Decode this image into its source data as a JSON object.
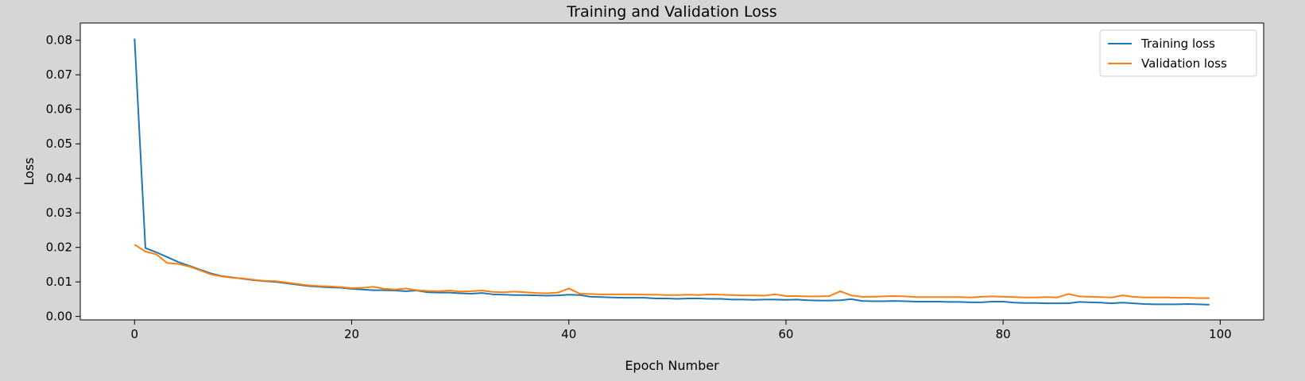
{
  "chart_data": {
    "type": "line",
    "title": "Training and Validation Loss",
    "xlabel": "Epoch Number",
    "ylabel": "Loss",
    "xlim": [
      -5,
      104
    ],
    "ylim": [
      -0.001,
      0.085
    ],
    "xticks": [
      0,
      20,
      40,
      60,
      80,
      100
    ],
    "xtick_labels": [
      "0",
      "20",
      "40",
      "60",
      "80",
      "100"
    ],
    "yticks": [
      0.0,
      0.01,
      0.02,
      0.03,
      0.04,
      0.05,
      0.06,
      0.07,
      0.08
    ],
    "ytick_labels": [
      "0.00",
      "0.01",
      "0.02",
      "0.03",
      "0.04",
      "0.05",
      "0.06",
      "0.07",
      "0.08"
    ],
    "grid": false,
    "legend_position": "top-right",
    "x": [
      0,
      1,
      2,
      3,
      4,
      5,
      6,
      7,
      8,
      9,
      10,
      11,
      12,
      13,
      14,
      15,
      16,
      17,
      18,
      19,
      20,
      21,
      22,
      23,
      24,
      25,
      26,
      27,
      28,
      29,
      30,
      31,
      32,
      33,
      34,
      35,
      36,
      37,
      38,
      39,
      40,
      41,
      42,
      43,
      44,
      45,
      46,
      47,
      48,
      49,
      50,
      51,
      52,
      53,
      54,
      55,
      56,
      57,
      58,
      59,
      60,
      61,
      62,
      63,
      64,
      65,
      66,
      67,
      68,
      69,
      70,
      71,
      72,
      73,
      74,
      75,
      76,
      77,
      78,
      79,
      80,
      81,
      82,
      83,
      84,
      85,
      86,
      87,
      88,
      89,
      90,
      91,
      92,
      93,
      94,
      95,
      96,
      97,
      98,
      99
    ],
    "series": [
      {
        "name": "Training loss",
        "color": "#1f77b4",
        "values": [
          0.0805,
          0.0198,
          0.0186,
          0.0172,
          0.0158,
          0.0147,
          0.0136,
          0.0125,
          0.0117,
          0.0113,
          0.0109,
          0.0105,
          0.0102,
          0.01,
          0.0096,
          0.0092,
          0.0088,
          0.0086,
          0.0084,
          0.0083,
          0.008,
          0.0078,
          0.0076,
          0.0076,
          0.0075,
          0.0073,
          0.0075,
          0.007,
          0.0069,
          0.0069,
          0.0067,
          0.0066,
          0.0068,
          0.0064,
          0.0063,
          0.0062,
          0.0062,
          0.0061,
          0.006,
          0.0061,
          0.0063,
          0.0062,
          0.0057,
          0.0056,
          0.0055,
          0.0054,
          0.0054,
          0.0054,
          0.0052,
          0.0052,
          0.0051,
          0.0052,
          0.0052,
          0.0051,
          0.0051,
          0.0049,
          0.0049,
          0.0048,
          0.0049,
          0.0049,
          0.0048,
          0.0049,
          0.0047,
          0.0046,
          0.0046,
          0.0047,
          0.005,
          0.0045,
          0.0044,
          0.0044,
          0.0045,
          0.0044,
          0.0043,
          0.0043,
          0.0043,
          0.0042,
          0.0042,
          0.0041,
          0.0041,
          0.0043,
          0.0043,
          0.004,
          0.0039,
          0.0039,
          0.0038,
          0.0038,
          0.0038,
          0.0042,
          0.0041,
          0.004,
          0.0038,
          0.004,
          0.0038,
          0.0036,
          0.0035,
          0.0035,
          0.0035,
          0.0036,
          0.0035,
          0.0034
        ]
      },
      {
        "name": "Validation loss",
        "color": "#ff7f0e",
        "values": [
          0.0208,
          0.0188,
          0.018,
          0.0155,
          0.0152,
          0.0145,
          0.0134,
          0.0122,
          0.0116,
          0.0112,
          0.011,
          0.0106,
          0.0103,
          0.0102,
          0.0098,
          0.0094,
          0.009,
          0.0088,
          0.0087,
          0.0085,
          0.0082,
          0.0083,
          0.0086,
          0.008,
          0.0078,
          0.0081,
          0.0076,
          0.0074,
          0.0073,
          0.0075,
          0.0072,
          0.0073,
          0.0075,
          0.0071,
          0.007,
          0.0072,
          0.007,
          0.0068,
          0.0067,
          0.0069,
          0.0081,
          0.0066,
          0.0065,
          0.0064,
          0.0064,
          0.0064,
          0.0064,
          0.0063,
          0.0063,
          0.0062,
          0.0062,
          0.0063,
          0.0062,
          0.0064,
          0.0063,
          0.0062,
          0.0061,
          0.0061,
          0.006,
          0.0064,
          0.0059,
          0.0059,
          0.0058,
          0.0058,
          0.0059,
          0.0073,
          0.0061,
          0.0057,
          0.0057,
          0.0058,
          0.0059,
          0.0058,
          0.0056,
          0.0056,
          0.0056,
          0.0056,
          0.0056,
          0.0055,
          0.0057,
          0.0058,
          0.0057,
          0.0056,
          0.0055,
          0.0055,
          0.0056,
          0.0055,
          0.0065,
          0.0058,
          0.0057,
          0.0056,
          0.0055,
          0.0061,
          0.0057,
          0.0055,
          0.0055,
          0.0055,
          0.0054,
          0.0054,
          0.0053,
          0.0053
        ]
      }
    ]
  }
}
